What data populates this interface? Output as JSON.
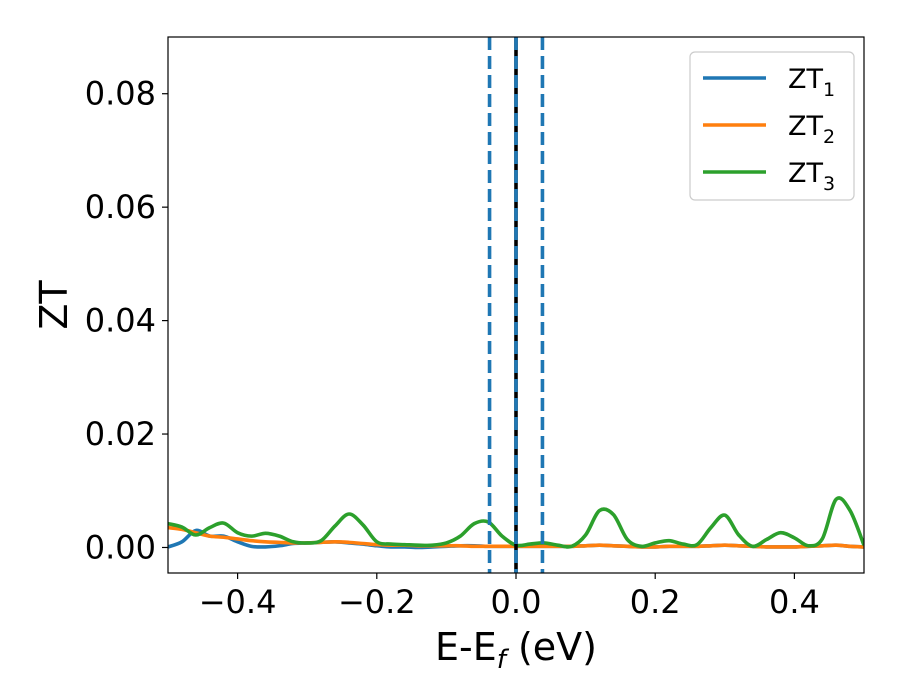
{
  "chart_data": {
    "type": "line",
    "title": "",
    "xlabel": "E-E",
    "xlabel_subscript": "f",
    "xlabel_unit": " (eV)",
    "ylabel": "ZT",
    "xlim": [
      -0.5,
      0.5
    ],
    "ylim": [
      -0.0045,
      0.09
    ],
    "grid": false,
    "legend_position": "top-right",
    "x_ticks": [
      -0.4,
      -0.2,
      0.0,
      0.2,
      0.4
    ],
    "x_tick_labels": [
      "−0.4",
      "−0.2",
      "0.0",
      "0.2",
      "0.4"
    ],
    "y_ticks": [
      0.0,
      0.02,
      0.04,
      0.06,
      0.08
    ],
    "y_tick_labels": [
      "0.00",
      "0.02",
      "0.04",
      "0.06",
      "0.08"
    ],
    "x": [
      -0.5,
      -0.48,
      -0.46,
      -0.44,
      -0.42,
      -0.4,
      -0.38,
      -0.36,
      -0.34,
      -0.32,
      -0.3,
      -0.28,
      -0.26,
      -0.24,
      -0.22,
      -0.2,
      -0.18,
      -0.16,
      -0.14,
      -0.12,
      -0.1,
      -0.08,
      -0.06,
      -0.04,
      -0.02,
      0.0,
      0.02,
      0.04,
      0.06,
      0.08,
      0.1,
      0.12,
      0.14,
      0.16,
      0.18,
      0.2,
      0.22,
      0.24,
      0.26,
      0.28,
      0.3,
      0.32,
      0.34,
      0.36,
      0.38,
      0.4,
      0.42,
      0.44,
      0.46,
      0.48,
      0.5
    ],
    "series": [
      {
        "name": "ZT",
        "subscript": "1",
        "color": "#1f77b4",
        "values": [
          0.0001,
          0.001,
          0.003,
          0.002,
          0.002,
          0.001,
          0.0002,
          0.0001,
          0.0003,
          0.0007,
          0.0008,
          0.0009,
          0.001,
          0.0008,
          0.0006,
          0.0003,
          0.0001,
          0.0001,
          0.0,
          0.0001,
          0.0002,
          0.0003,
          0.0003,
          0.0002,
          0.0002,
          0.0002,
          0.0002,
          0.0002,
          0.0002,
          0.0002,
          0.0003,
          0.0004,
          0.0003,
          0.0002,
          0.0001,
          0.0001,
          0.0002,
          0.0002,
          0.0002,
          0.0003,
          0.0004,
          0.0003,
          0.0002,
          0.0001,
          0.0001,
          0.0001,
          0.0002,
          0.0003,
          0.0004,
          0.0002,
          0.0001
        ]
      },
      {
        "name": "ZT",
        "subscript": "2",
        "color": "#ff7f0e",
        "values": [
          0.0035,
          0.0032,
          0.0026,
          0.002,
          0.0018,
          0.0015,
          0.0012,
          0.001,
          0.0009,
          0.0008,
          0.0008,
          0.0009,
          0.001,
          0.0009,
          0.0007,
          0.0005,
          0.0004,
          0.0004,
          0.0003,
          0.0003,
          0.0003,
          0.0003,
          0.0002,
          0.0002,
          0.0002,
          0.0002,
          0.0002,
          0.0002,
          0.0002,
          0.0002,
          0.0003,
          0.0004,
          0.0003,
          0.0002,
          0.0001,
          0.0001,
          0.0002,
          0.0002,
          0.0002,
          0.0003,
          0.0004,
          0.0003,
          0.0002,
          0.0001,
          0.0001,
          0.0001,
          0.0002,
          0.0003,
          0.0004,
          0.0002,
          0.0001
        ]
      },
      {
        "name": "ZT",
        "subscript": "3",
        "color": "#2ca02c",
        "values": [
          0.0042,
          0.0036,
          0.0022,
          0.0035,
          0.0043,
          0.0026,
          0.002,
          0.0025,
          0.002,
          0.001,
          0.0008,
          0.0012,
          0.0038,
          0.0059,
          0.004,
          0.001,
          0.0006,
          0.0005,
          0.0004,
          0.0004,
          0.0008,
          0.002,
          0.0042,
          0.0045,
          0.002,
          0.0004,
          0.0006,
          0.0008,
          0.0004,
          0.0002,
          0.0022,
          0.0065,
          0.0058,
          0.0014,
          0.0002,
          0.0008,
          0.0012,
          0.0006,
          0.0005,
          0.0035,
          0.0057,
          0.0022,
          0.0002,
          0.0014,
          0.0026,
          0.0017,
          0.0003,
          0.0015,
          0.0085,
          0.0065,
          0.0004
        ]
      }
    ],
    "vertical_lines": [
      {
        "x": 0.0,
        "style": "solid",
        "color": "#000000"
      },
      {
        "x": 0.0,
        "style": "dashed",
        "color": "#1f77b4"
      },
      {
        "x": -0.038,
        "style": "dashed",
        "color": "#1f77b4"
      },
      {
        "x": 0.038,
        "style": "dashed",
        "color": "#1f77b4"
      }
    ]
  }
}
